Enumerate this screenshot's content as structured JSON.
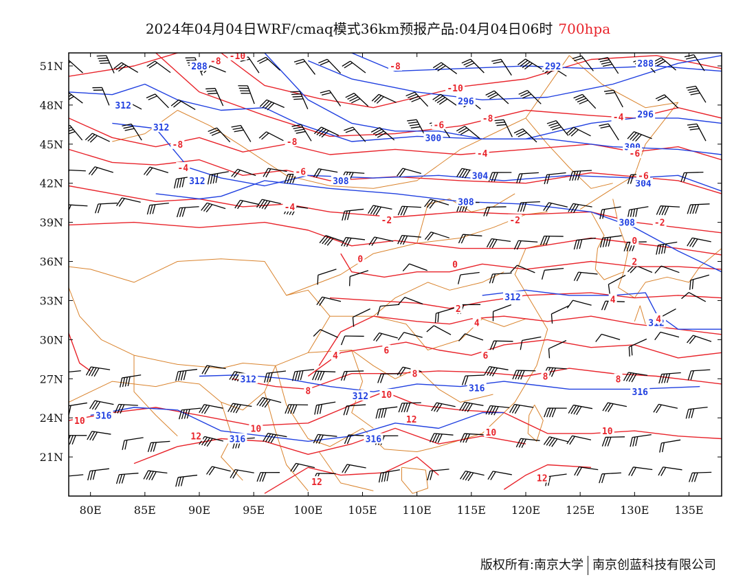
{
  "title": {
    "main": "2024年04月04日WRF/cmaq模式36km预报产品:04月04日06时",
    "level": "700hpa"
  },
  "footer": {
    "left": "版权所有:南京大学",
    "right": "南京创蓝科技有限公司"
  },
  "map": {
    "lon_range": [
      78,
      138
    ],
    "lat_range": [
      18,
      52
    ],
    "x_ticks": [
      "80E",
      "85E",
      "90E",
      "95E",
      "100E",
      "105E",
      "110E",
      "115E",
      "120E",
      "125E",
      "130E",
      "135E"
    ],
    "x_tick_values": [
      80,
      85,
      90,
      95,
      100,
      105,
      110,
      115,
      120,
      125,
      130,
      135
    ],
    "y_ticks": [
      "51N",
      "48N",
      "45N",
      "42N",
      "39N",
      "36N",
      "33N",
      "30N",
      "27N",
      "24N",
      "21N"
    ],
    "y_tick_values": [
      51,
      48,
      45,
      42,
      39,
      36,
      33,
      30,
      27,
      24,
      21
    ],
    "colors": {
      "temperature": "#e8232a",
      "geopotential": "#1f3fe0",
      "boundaries": "#d9822b",
      "wind": "#000000",
      "frame": "#000000"
    },
    "geopotential_labels": [
      {
        "text": "288",
        "lon": 90,
        "lat": 51
      },
      {
        "text": "292",
        "lon": 122.5,
        "lat": 51
      },
      {
        "text": "288",
        "lon": 131,
        "lat": 51.2
      },
      {
        "text": "312",
        "lon": 83,
        "lat": 48
      },
      {
        "text": "296",
        "lon": 114.5,
        "lat": 48.3
      },
      {
        "text": "296",
        "lon": 131,
        "lat": 47.3
      },
      {
        "text": "312",
        "lon": 86.5,
        "lat": 46.3
      },
      {
        "text": "300",
        "lon": 111.5,
        "lat": 45.5
      },
      {
        "text": "300",
        "lon": 129.8,
        "lat": 44.8
      },
      {
        "text": "312",
        "lon": 89.8,
        "lat": 42.2
      },
      {
        "text": "308",
        "lon": 103,
        "lat": 42.2
      },
      {
        "text": "304",
        "lon": 115.8,
        "lat": 42.6
      },
      {
        "text": "304",
        "lon": 130.8,
        "lat": 42.0
      },
      {
        "text": "308",
        "lon": 114.5,
        "lat": 40.6
      },
      {
        "text": "308",
        "lon": 129.3,
        "lat": 39.0
      },
      {
        "text": "312",
        "lon": 118.8,
        "lat": 33.3
      },
      {
        "text": "312",
        "lon": 132.0,
        "lat": 31.3
      },
      {
        "text": "312",
        "lon": 94.5,
        "lat": 27.0
      },
      {
        "text": "312",
        "lon": 104.8,
        "lat": 25.7
      },
      {
        "text": "316",
        "lon": 115.5,
        "lat": 26.3
      },
      {
        "text": "316",
        "lon": 130.5,
        "lat": 26.0
      },
      {
        "text": "316",
        "lon": 81.2,
        "lat": 24.2
      },
      {
        "text": "316",
        "lon": 93.5,
        "lat": 22.4
      },
      {
        "text": "316",
        "lon": 106.0,
        "lat": 22.4
      }
    ],
    "temperature_labels": [
      {
        "text": "-8",
        "lon": 91.5,
        "lat": 51.4
      },
      {
        "text": "-10",
        "lon": 93.5,
        "lat": 51.8
      },
      {
        "text": "-8",
        "lon": 108,
        "lat": 51.0
      },
      {
        "text": "-10",
        "lon": 113.5,
        "lat": 49.3
      },
      {
        "text": "-8",
        "lon": 116.5,
        "lat": 47.0
      },
      {
        "text": "-4",
        "lon": 128.5,
        "lat": 47.1
      },
      {
        "text": "-6",
        "lon": 112,
        "lat": 46.5
      },
      {
        "text": "-8",
        "lon": 88,
        "lat": 45.0
      },
      {
        "text": "-8",
        "lon": 98.5,
        "lat": 45.2
      },
      {
        "text": "-4",
        "lon": 116,
        "lat": 44.3
      },
      {
        "text": "-6",
        "lon": 130.0,
        "lat": 44.3
      },
      {
        "text": "-4",
        "lon": 88.5,
        "lat": 43.2
      },
      {
        "text": "-6",
        "lon": 99.3,
        "lat": 42.9
      },
      {
        "text": "-6",
        "lon": 130.8,
        "lat": 42.6
      },
      {
        "text": "-4",
        "lon": 98.3,
        "lat": 40.2
      },
      {
        "text": "-2",
        "lon": 107.2,
        "lat": 39.2
      },
      {
        "text": "-2",
        "lon": 119.0,
        "lat": 39.2
      },
      {
        "text": "-2",
        "lon": 132.3,
        "lat": 39.0
      },
      {
        "text": "0",
        "lon": 130.0,
        "lat": 37.6
      },
      {
        "text": "0",
        "lon": 104.8,
        "lat": 36.2
      },
      {
        "text": "0",
        "lon": 113.5,
        "lat": 35.8
      },
      {
        "text": "2",
        "lon": 130.0,
        "lat": 36.0
      },
      {
        "text": "4",
        "lon": 128.0,
        "lat": 33.1
      },
      {
        "text": "2",
        "lon": 113.8,
        "lat": 32.4
      },
      {
        "text": "4",
        "lon": 115.5,
        "lat": 31.3
      },
      {
        "text": "4",
        "lon": 132.2,
        "lat": 31.6
      },
      {
        "text": "6",
        "lon": 107.2,
        "lat": 29.2
      },
      {
        "text": "4",
        "lon": 102.5,
        "lat": 28.8
      },
      {
        "text": "6",
        "lon": 116.3,
        "lat": 28.8
      },
      {
        "text": "8",
        "lon": 109.8,
        "lat": 27.4
      },
      {
        "text": "8",
        "lon": 121.8,
        "lat": 27.2
      },
      {
        "text": "8",
        "lon": 128.5,
        "lat": 27.0
      },
      {
        "text": "8",
        "lon": 100.0,
        "lat": 26.1
      },
      {
        "text": "10",
        "lon": 107.2,
        "lat": 25.8
      },
      {
        "text": "12",
        "lon": 109.5,
        "lat": 23.9
      },
      {
        "text": "10",
        "lon": 79.0,
        "lat": 23.8
      },
      {
        "text": "10",
        "lon": 95.2,
        "lat": 23.2
      },
      {
        "text": "10",
        "lon": 127.5,
        "lat": 23.0
      },
      {
        "text": "10",
        "lon": 116.8,
        "lat": 22.9
      },
      {
        "text": "12",
        "lon": 89.7,
        "lat": 22.6
      },
      {
        "text": "12",
        "lon": 100.8,
        "lat": 19.1
      },
      {
        "text": "12",
        "lon": 121.5,
        "lat": 19.4
      }
    ]
  }
}
